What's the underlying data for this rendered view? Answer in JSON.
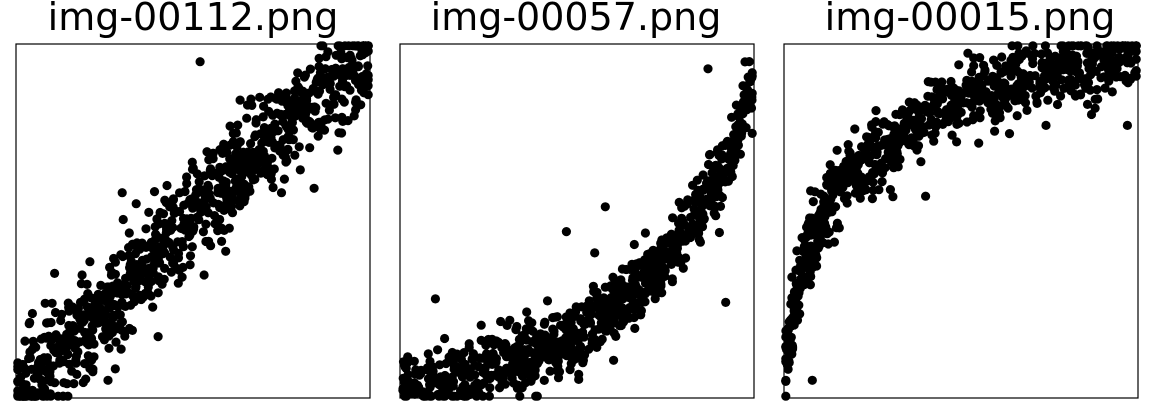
{
  "colors": {
    "background": "#ffffff",
    "points": "#000000",
    "frame": "#000000"
  },
  "chart_data": [
    {
      "type": "scatter",
      "title": "img-00112.png",
      "xlim": [
        0,
        1
      ],
      "ylim": [
        0,
        1
      ],
      "grid": false,
      "ticks": false,
      "shape": "linear",
      "trend": [
        [
          0.0,
          0.03
        ],
        [
          0.25,
          0.24
        ],
        [
          0.5,
          0.52
        ],
        [
          0.75,
          0.76
        ],
        [
          1.0,
          0.97
        ]
      ],
      "spread": 0.07,
      "n_points": 900,
      "outliers": [
        [
          0.52,
          0.95
        ],
        [
          0.27,
          0.21
        ],
        [
          0.3,
          0.58
        ],
        [
          0.75,
          0.58
        ],
        [
          0.26,
          0.05
        ]
      ]
    },
    {
      "type": "scatter",
      "title": "img-00057.png",
      "xlim": [
        0,
        1
      ],
      "ylim": [
        0,
        1
      ],
      "grid": false,
      "ticks": false,
      "shape": "convex",
      "trend": [
        [
          0.0,
          0.05
        ],
        [
          0.25,
          0.08
        ],
        [
          0.5,
          0.17
        ],
        [
          0.75,
          0.38
        ],
        [
          0.9,
          0.62
        ],
        [
          1.0,
          0.88
        ]
      ],
      "spread": 0.05,
      "n_points": 850,
      "outliers": [
        [
          0.87,
          0.93
        ],
        [
          0.58,
          0.54
        ],
        [
          0.47,
          0.47
        ],
        [
          0.55,
          0.41
        ],
        [
          0.1,
          0.28
        ],
        [
          0.92,
          0.27
        ]
      ]
    },
    {
      "type": "scatter",
      "title": "img-00015.png",
      "xlim": [
        0,
        1
      ],
      "ylim": [
        0,
        1
      ],
      "grid": false,
      "ticks": false,
      "shape": "concave",
      "trend": [
        [
          0.0,
          0.1
        ],
        [
          0.05,
          0.38
        ],
        [
          0.15,
          0.6
        ],
        [
          0.3,
          0.73
        ],
        [
          0.5,
          0.84
        ],
        [
          0.75,
          0.92
        ],
        [
          1.0,
          0.97
        ]
      ],
      "spread": 0.05,
      "n_points": 850,
      "outliers": [
        [
          0.08,
          0.05
        ],
        [
          0.2,
          0.76
        ],
        [
          0.55,
          0.72
        ],
        [
          0.97,
          0.77
        ],
        [
          0.74,
          0.77
        ],
        [
          0.4,
          0.57
        ]
      ]
    }
  ]
}
